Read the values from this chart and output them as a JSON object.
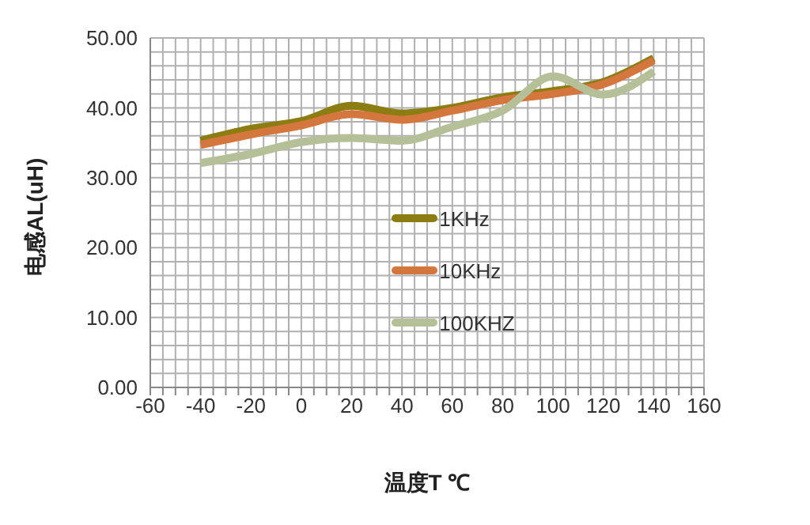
{
  "chart_data": {
    "type": "line",
    "xlabel": "温度T ℃",
    "ylabel": "电感AL(uH)",
    "x": [
      -40,
      -20,
      0,
      20,
      40,
      60,
      80,
      100,
      120,
      140
    ],
    "series": [
      {
        "name": "1KHz",
        "color": "#8b7d12",
        "values": [
          35.3,
          37.0,
          38.1,
          40.3,
          39.2,
          40.0,
          41.5,
          42.4,
          43.7,
          47.1
        ]
      },
      {
        "name": "10KHz",
        "color": "#d4773f",
        "values": [
          34.7,
          36.2,
          37.5,
          39.1,
          38.3,
          39.6,
          41.1,
          42.0,
          43.4,
          46.8
        ]
      },
      {
        "name": "100KHZ",
        "color": "#b5bf98",
        "values": [
          32.1,
          33.4,
          35.1,
          35.7,
          35.3,
          37.3,
          39.6,
          44.5,
          41.9,
          45.2
        ]
      }
    ],
    "xlim": [
      -60,
      160
    ],
    "xticks": [
      -60,
      {
        "value": -55,
        "label": null
      },
      {
        "value": -50,
        "label": null
      },
      {
        "value": -45,
        "label": null
      },
      -40,
      {
        "value": -35,
        "label": null
      },
      {
        "value": -30,
        "label": null
      },
      {
        "value": -25,
        "label": null
      },
      -20,
      {
        "value": -15,
        "label": null
      },
      {
        "value": -10,
        "label": null
      },
      {
        "value": -5,
        "label": null
      },
      0,
      {
        "value": 5,
        "label": null
      },
      {
        "value": 10,
        "label": null
      },
      {
        "value": 15,
        "label": null
      },
      20,
      {
        "value": 25,
        "label": null
      },
      {
        "value": 30,
        "label": null
      },
      {
        "value": 35,
        "label": null
      },
      40,
      {
        "value": 45,
        "label": null
      },
      {
        "value": 50,
        "label": null
      },
      {
        "value": 55,
        "label": null
      },
      60,
      {
        "value": 65,
        "label": null
      },
      {
        "value": 70,
        "label": null
      },
      {
        "value": 75,
        "label": null
      },
      80,
      {
        "value": 85,
        "label": null
      },
      {
        "value": 90,
        "label": null
      },
      {
        "value": 95,
        "label": null
      },
      100,
      {
        "value": 105,
        "label": null
      },
      {
        "value": 110,
        "label": null
      },
      {
        "value": 115,
        "label": null
      },
      120,
      {
        "value": 125,
        "label": null
      },
      {
        "value": 130,
        "label": null
      },
      {
        "value": 135,
        "label": null
      },
      140,
      {
        "value": 145,
        "label": null
      },
      {
        "value": 150,
        "label": null
      },
      {
        "value": 155,
        "label": null
      },
      160
    ],
    "ylim": [
      0,
      50
    ],
    "yticks": [
      {
        "value": 0,
        "label": "0.00"
      },
      {
        "value": 2,
        "label": null
      },
      {
        "value": 4,
        "label": null
      },
      {
        "value": 6,
        "label": null
      },
      {
        "value": 8,
        "label": null
      },
      {
        "value": 10,
        "label": "10.00"
      },
      {
        "value": 12,
        "label": null
      },
      {
        "value": 14,
        "label": null
      },
      {
        "value": 16,
        "label": null
      },
      {
        "value": 18,
        "label": null
      },
      {
        "value": 20,
        "label": "20.00"
      },
      {
        "value": 22,
        "label": null
      },
      {
        "value": 24,
        "label": null
      },
      {
        "value": 26,
        "label": null
      },
      {
        "value": 28,
        "label": null
      },
      {
        "value": 30,
        "label": "30.00"
      },
      {
        "value": 32,
        "label": null
      },
      {
        "value": 34,
        "label": null
      },
      {
        "value": 36,
        "label": null
      },
      {
        "value": 38,
        "label": null
      },
      {
        "value": 40,
        "label": "40.00"
      },
      {
        "value": 42,
        "label": null
      },
      {
        "value": 44,
        "label": null
      },
      {
        "value": 46,
        "label": null
      },
      {
        "value": 48,
        "label": null
      },
      {
        "value": 50,
        "label": "50.00"
      }
    ],
    "grid": true,
    "legend": "center",
    "marker": "none",
    "line_style": "solid"
  }
}
